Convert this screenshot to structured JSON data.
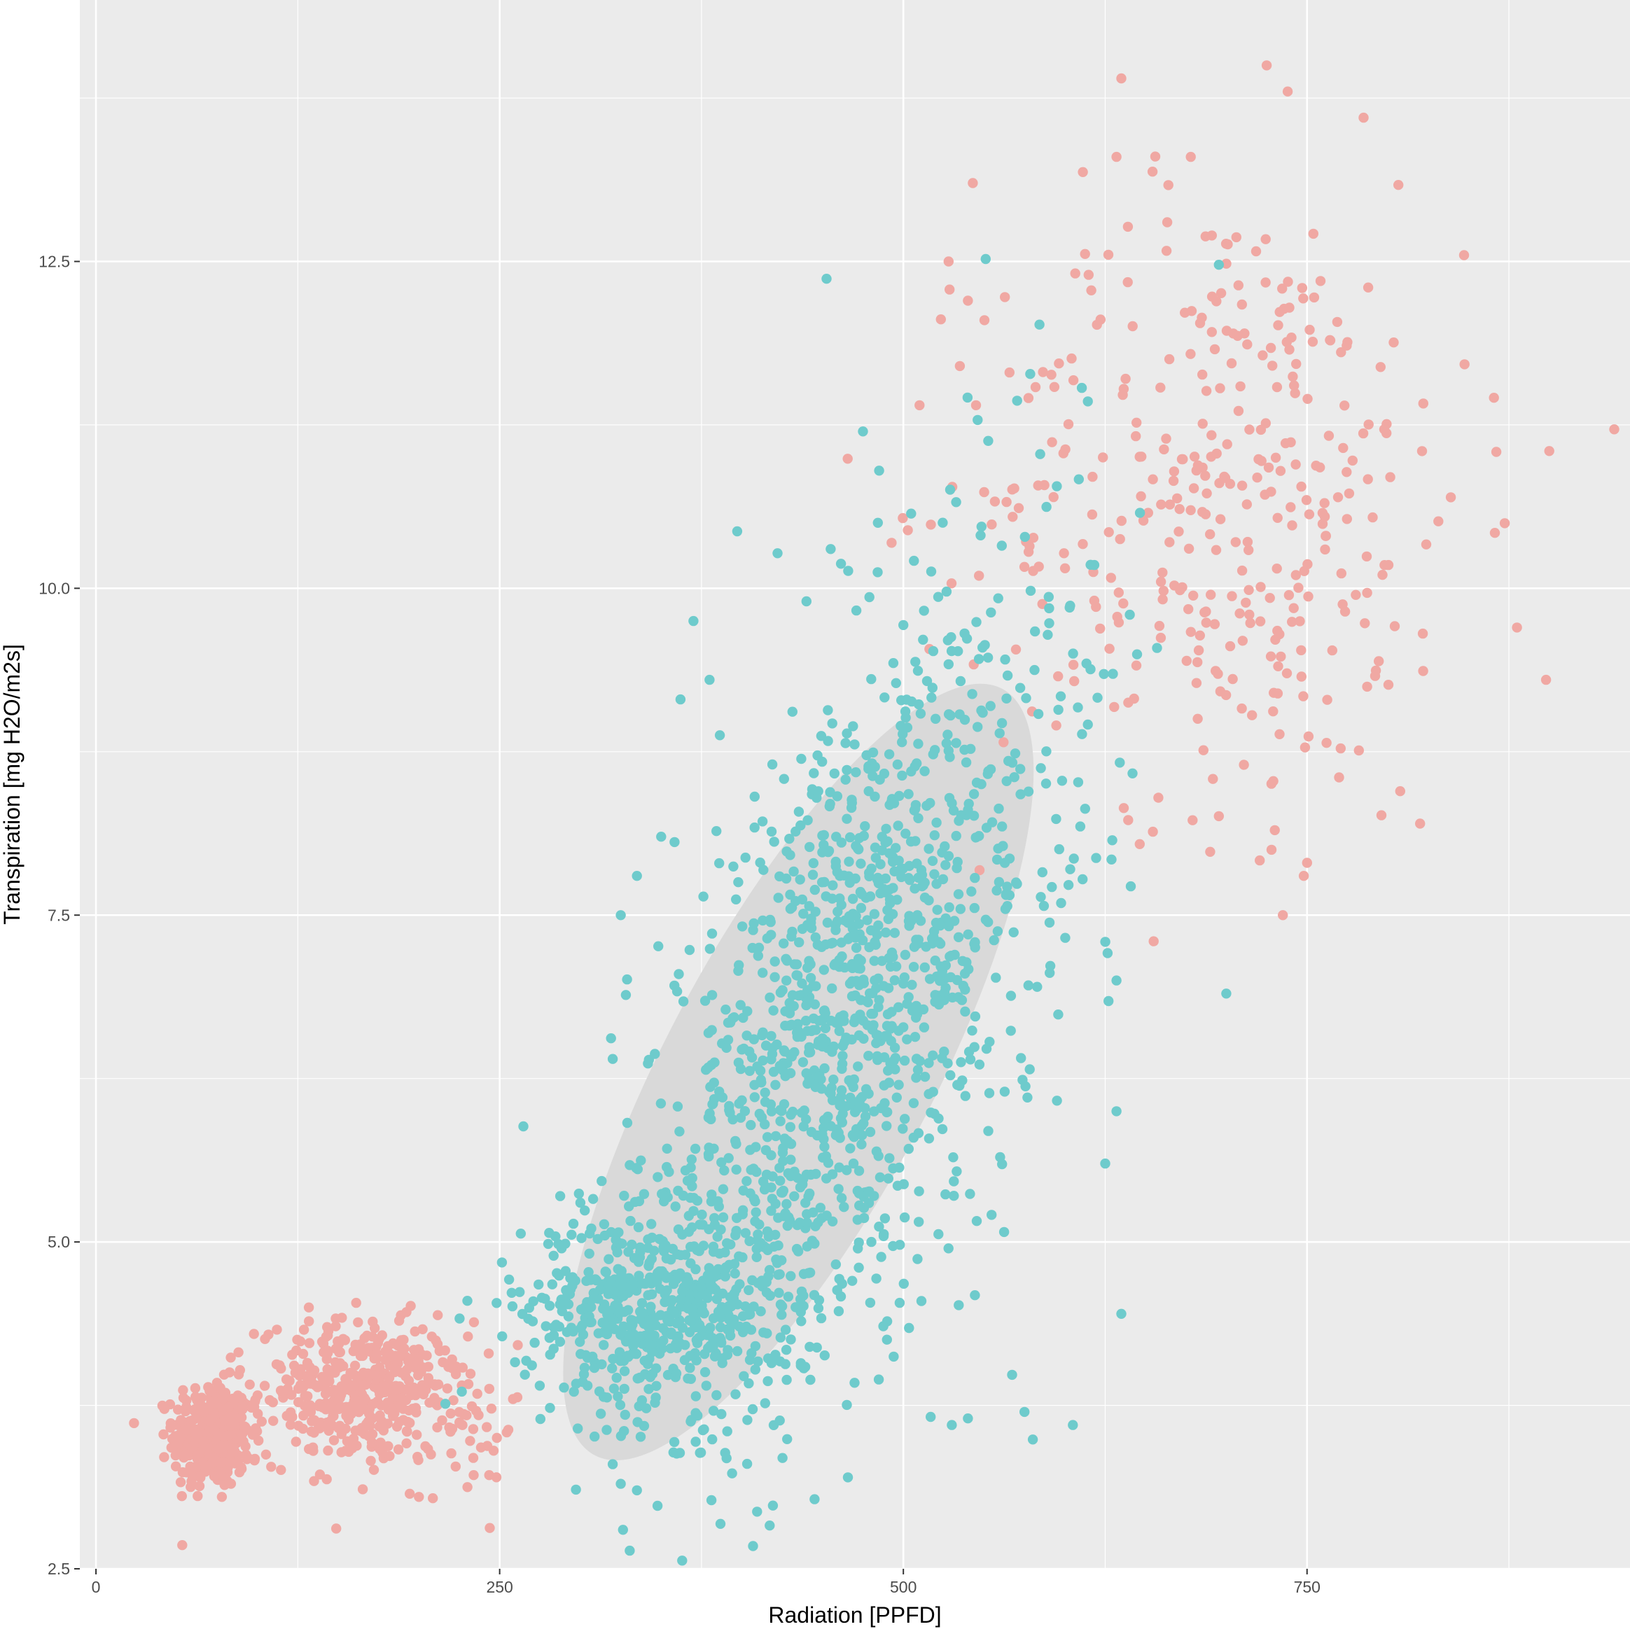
{
  "chart_data": {
    "type": "scatter",
    "title": "",
    "xlabel": "Radiation [PPFD]",
    "ylabel": "Transpiration [mg H2O/m2s]",
    "xlim": [
      -10,
      950
    ],
    "ylim": [
      2.5,
      14.5
    ],
    "x_ticks": [
      0,
      250,
      500,
      750
    ],
    "x_tick_labels": [
      "0",
      "250",
      "500",
      "750"
    ],
    "y_ticks": [
      2.5,
      5.0,
      7.5,
      10.0,
      12.5
    ],
    "y_tick_labels": [
      "2.5",
      "5.0",
      "7.5",
      "10.0",
      "12.5"
    ],
    "grid": true,
    "legend": "none",
    "colors": {
      "group_1": "#f0a8a3",
      "group_2": "#6ecbcc",
      "panel": "#ebebeb",
      "grid": "#ffffff",
      "ellipse": "#d9d9d9"
    },
    "ellipse": {
      "series": "group_2",
      "center": [
        435,
        6.3
      ],
      "rx": 115,
      "ry": 3.2,
      "angle_deg": 62
    },
    "clusters": [
      {
        "series": "group_1",
        "n": 380,
        "x": [
          72,
          12
        ],
        "y": [
          3.52,
          0.2
        ]
      },
      {
        "series": "group_1",
        "n": 460,
        "x": [
          165,
          32
        ],
        "y": [
          3.85,
          0.27
        ]
      },
      {
        "series": "group_1",
        "n": 25,
        "x": [
          230,
          15
        ],
        "y": [
          3.6,
          0.3
        ]
      },
      {
        "series": "group_1",
        "n": 380,
        "x": [
          700,
          75
        ],
        "y": [
          10.7,
          1.2
        ]
      },
      {
        "series": "group_2",
        "n": 520,
        "x": [
          345,
          40
        ],
        "y": [
          4.5,
          0.35
        ]
      },
      {
        "series": "group_2",
        "n": 1250,
        "x": [
          460,
          65
        ],
        "y": [
          6.6,
          1.5
        ],
        "corr": 0.6
      },
      {
        "series": "group_2",
        "n": 90,
        "x": [
          560,
          55
        ],
        "y": [
          8.2,
          1.8
        ]
      }
    ],
    "points": {
      "group_1": [
        [
          725,
          14.0
        ],
        [
          635,
          13.9
        ],
        [
          738,
          13.8
        ],
        [
          785,
          13.6
        ],
        [
          543,
          13.1
        ],
        [
          678,
          13.3
        ],
        [
          632,
          13.3
        ],
        [
          540,
          12.2
        ],
        [
          528,
          12.5
        ],
        [
          535,
          11.7
        ],
        [
          510,
          11.4
        ],
        [
          545,
          11.4
        ],
        [
          900,
          11.05
        ],
        [
          880,
          9.7
        ],
        [
          898,
          9.3
        ],
        [
          820,
          8.2
        ],
        [
          655,
          7.3
        ],
        [
          728,
          8.0
        ],
        [
          750,
          7.9
        ],
        [
          748,
          7.8
        ],
        [
          735,
          7.5
        ],
        [
          200,
          3.05
        ],
        [
          78,
          3.05
        ],
        [
          248,
          3.2
        ]
      ],
      "group_2": [
        [
          475,
          11.2
        ],
        [
          485,
          10.9
        ],
        [
          440,
          9.9
        ],
        [
          455,
          10.3
        ],
        [
          370,
          9.75
        ],
        [
          380,
          9.3
        ],
        [
          362,
          9.15
        ],
        [
          350,
          8.1
        ],
        [
          335,
          7.8
        ],
        [
          325,
          7.5
        ],
        [
          320,
          6.4
        ],
        [
          300,
          5.3
        ],
        [
          605,
          3.6
        ],
        [
          575,
          3.7
        ],
        [
          540,
          3.65
        ],
        [
          530,
          3.6
        ],
        [
          320,
          3.3
        ],
        [
          335,
          3.1
        ],
        [
          325,
          3.15
        ],
        [
          635,
          4.45
        ],
        [
          625,
          5.6
        ],
        [
          632,
          6.0
        ],
        [
          700,
          6.9
        ],
        [
          230,
          4.55
        ]
      ]
    }
  }
}
